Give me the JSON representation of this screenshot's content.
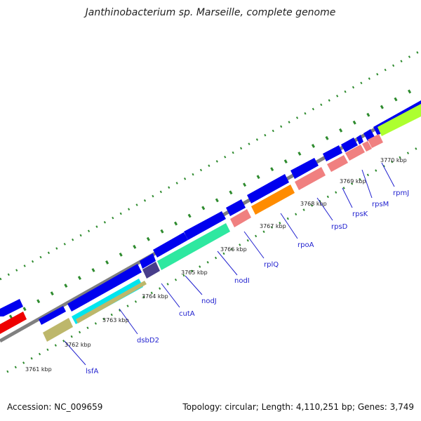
{
  "title": "Janthinobacterium sp. Marseille, complete genome",
  "footer": {
    "accession": "Accession: NC_009659",
    "summary": "Topology: circular; Length: 4,110,251 bp; Genes: 3,749"
  },
  "colors": {
    "backbone": "#808080",
    "forward_gene": "#0000ee",
    "tick_dot": "#2e8b2e"
  },
  "kbp_labels": [
    "3761 kbp",
    "3762 kbp",
    "3763 kbp",
    "3764 kbp",
    "3765 kbp",
    "3766 kbp",
    "3767 kbp",
    "3768 kbp",
    "3769 kbp",
    "3770 kbp"
  ],
  "gene_labels": [
    "lsfA",
    "dsbD2",
    "cutA",
    "nodJ",
    "nodI",
    "rplQ",
    "rpoA",
    "rpsD",
    "rpsK",
    "rpsM",
    "rpmJ"
  ]
}
